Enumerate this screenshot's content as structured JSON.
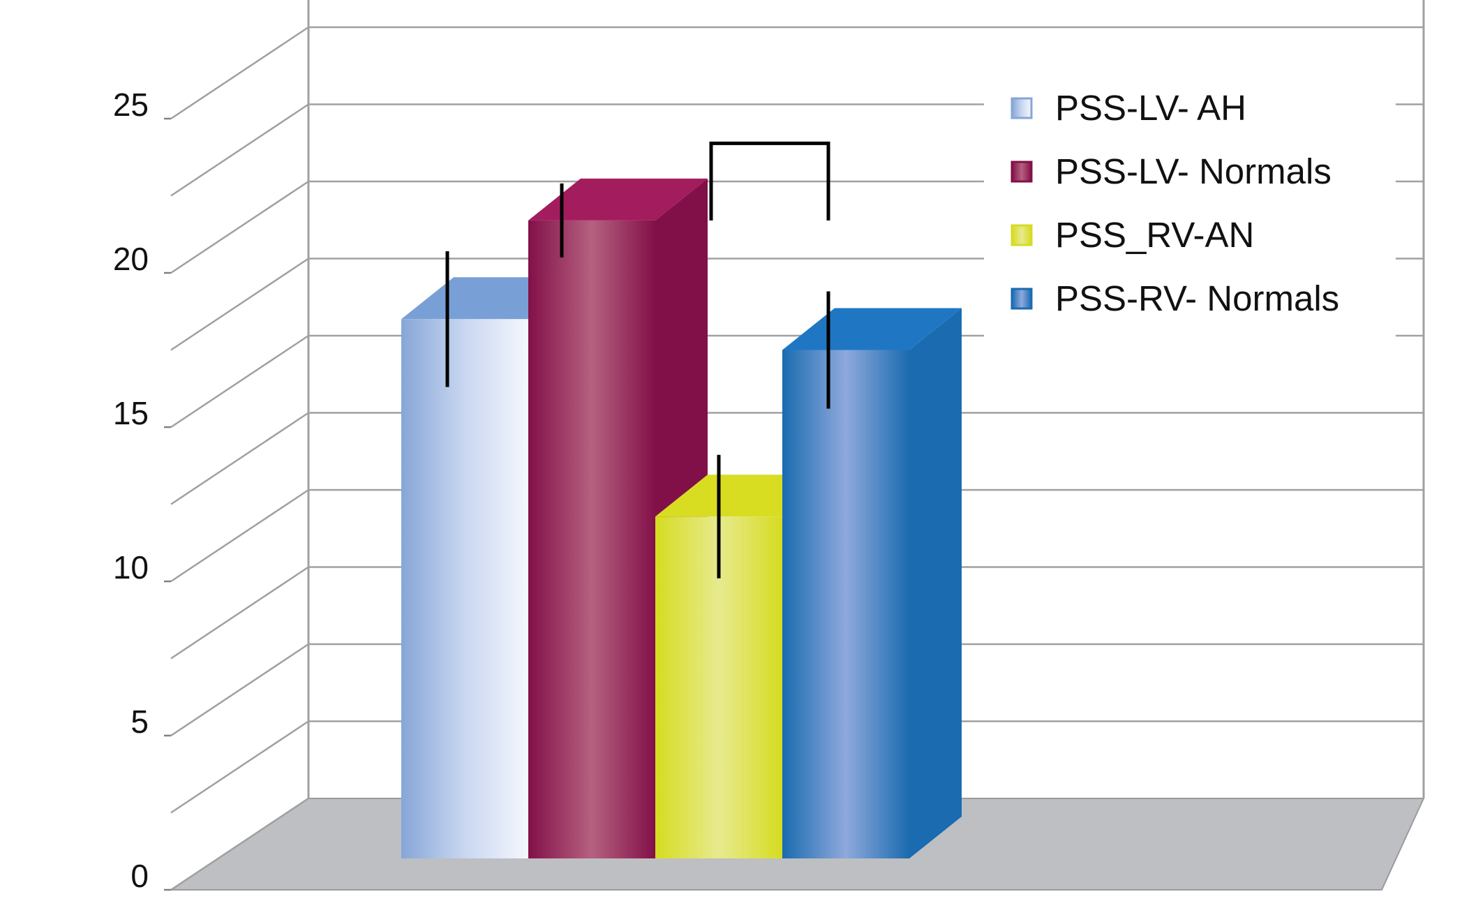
{
  "chart_data": {
    "type": "bar",
    "style": "3d-column",
    "title": "",
    "xlabel": "",
    "ylabel": "",
    "ylim": [
      0,
      25
    ],
    "yticks": [
      0,
      5,
      10,
      15,
      20,
      25
    ],
    "grid": true,
    "legend": "top-right",
    "series": [
      {
        "name": "PSS-LV- AH",
        "value": 18.5,
        "error": 2.2,
        "color_front": "#c9d7f0",
        "color_side": "#86a6d8",
        "color_top": "#79a0d6"
      },
      {
        "name": "PSS-LV- Normals",
        "value": 21.7,
        "error": 1.2,
        "color_front": "#b5617f",
        "color_side": "#821048",
        "color_top": "#a31c5e"
      },
      {
        "name": "PSS_RV-AN",
        "value": 12.1,
        "error": 2.0,
        "color_front": "#e7ea8e",
        "color_side": "#d6dc20",
        "color_top": "#d8dd22"
      },
      {
        "name": "PSS-RV- Normals",
        "value": 17.5,
        "error": 1.9,
        "color_front": "#8fa9dc",
        "color_side": "#1a6bb0",
        "color_top": "#1f77c4"
      }
    ],
    "significance_bracket": {
      "from_series": 1,
      "to_series": 3
    }
  }
}
